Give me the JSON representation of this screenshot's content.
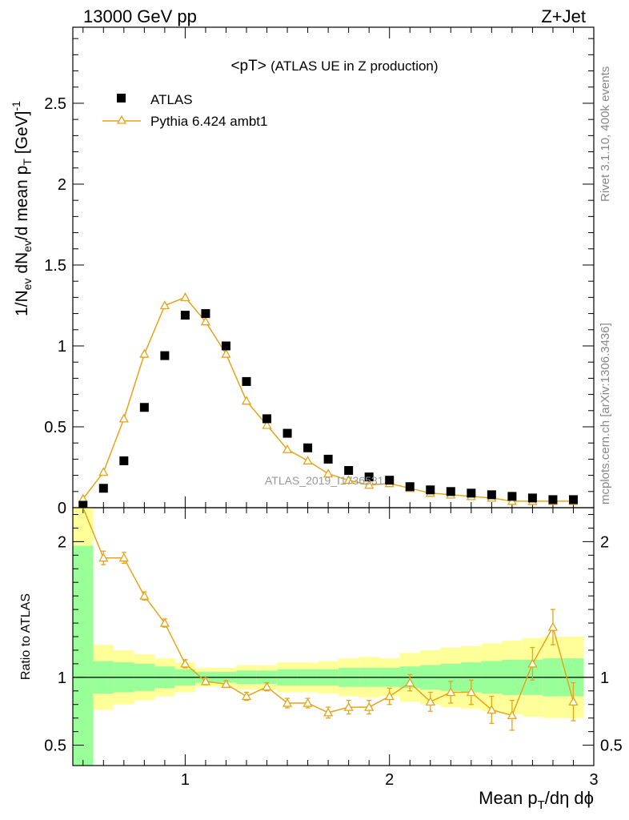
{
  "header": {
    "left": "13000 GeV pp",
    "right": "Z+Jet"
  },
  "side_text": {
    "rivet": "Rivet 3.1.10,  400k events",
    "site": "mcplots.cern.ch [arXiv:1306.3436]"
  },
  "watermark": "ATLAS_2019_I1736531",
  "chart_data": [
    {
      "type": "scatter",
      "title": "<pT>",
      "subtitle": "(ATLAS UE in Z production)",
      "ylabel": "1/N_ev dN_ev/d mean p_T [GeV]^-1",
      "xlim": [
        0.45,
        3.0
      ],
      "ylim": [
        0,
        2.97
      ],
      "y_ticks": [
        0,
        0.5,
        1,
        1.5,
        2,
        2.5
      ],
      "y_tick_labels": [
        "0",
        "0.5",
        "1",
        "1.5",
        "2",
        "2.5"
      ],
      "legend_position": "top-left",
      "series": [
        {
          "name": "ATLAS",
          "marker": "filled-square",
          "color": "#000000",
          "x": [
            0.5,
            0.6,
            0.7,
            0.8,
            0.9,
            1.0,
            1.1,
            1.2,
            1.3,
            1.4,
            1.5,
            1.6,
            1.7,
            1.8,
            1.9,
            2.0,
            2.1,
            2.2,
            2.3,
            2.4,
            2.5,
            2.6,
            2.7,
            2.8,
            2.9
          ],
          "y": [
            0.015,
            0.12,
            0.29,
            0.62,
            0.94,
            1.19,
            1.2,
            1.0,
            0.78,
            0.55,
            0.46,
            0.37,
            0.3,
            0.23,
            0.19,
            0.17,
            0.13,
            0.11,
            0.1,
            0.09,
            0.08,
            0.07,
            0.06,
            0.05,
            0.05
          ]
        },
        {
          "name": "Pythia 6.424 ambt1",
          "marker": "open-triangle",
          "color": "#E8A317",
          "x": [
            0.5,
            0.6,
            0.7,
            0.8,
            0.9,
            1.0,
            1.1,
            1.2,
            1.3,
            1.4,
            1.5,
            1.6,
            1.7,
            1.8,
            1.9,
            2.0,
            2.1,
            2.2,
            2.3,
            2.4,
            2.5,
            2.6,
            2.7,
            2.8,
            2.9
          ],
          "y": [
            0.055,
            0.22,
            0.55,
            0.95,
            1.25,
            1.3,
            1.15,
            0.95,
            0.66,
            0.51,
            0.36,
            0.29,
            0.21,
            0.17,
            0.14,
            0.15,
            0.12,
            0.09,
            0.08,
            0.07,
            0.06,
            0.04,
            0.04,
            0.04,
            0.04
          ],
          "yerr": [
            0.005,
            0.01,
            0.015,
            0.02,
            0.025,
            0.025,
            0.02,
            0.02,
            0.015,
            0.015,
            0.012,
            0.01,
            0.01,
            0.008,
            0.008,
            0.008,
            0.006,
            0.006,
            0.005,
            0.005,
            0.005,
            0.004,
            0.004,
            0.004,
            0.004
          ]
        }
      ]
    },
    {
      "type": "line",
      "ylabel": "Ratio to ATLAS",
      "xlabel": "Mean p_T/dη dφ",
      "xlim": [
        0.45,
        3.0
      ],
      "ylim": [
        0.35,
        2.25
      ],
      "x_ticks": [
        1,
        2,
        3
      ],
      "x_tick_labels": [
        "1",
        "2",
        "3"
      ],
      "y_ticks": [
        0.5,
        1,
        2
      ],
      "y_tick_labels": [
        "0.5",
        "1",
        "2"
      ],
      "bin_edges": [
        0.45,
        0.55,
        0.65,
        0.75,
        0.85,
        0.95,
        1.05,
        1.15,
        1.25,
        1.35,
        1.45,
        1.55,
        1.65,
        1.75,
        1.85,
        1.95,
        2.05,
        2.15,
        2.25,
        2.35,
        2.45,
        2.55,
        2.65,
        2.75,
        2.85,
        2.95
      ],
      "band_green": {
        "lo": [
          0.35,
          0.88,
          0.89,
          0.9,
          0.92,
          0.94,
          0.96,
          0.96,
          0.95,
          0.95,
          0.94,
          0.94,
          0.94,
          0.93,
          0.93,
          0.93,
          0.92,
          0.91,
          0.9,
          0.89,
          0.88,
          0.87,
          0.87,
          0.86,
          0.86
        ],
        "hi": [
          1.97,
          1.12,
          1.11,
          1.1,
          1.08,
          1.06,
          1.04,
          1.04,
          1.05,
          1.05,
          1.06,
          1.06,
          1.06,
          1.07,
          1.07,
          1.07,
          1.08,
          1.09,
          1.1,
          1.11,
          1.12,
          1.13,
          1.13,
          1.14,
          1.14
        ]
      },
      "band_yellow": {
        "lo": [
          0.35,
          0.76,
          0.8,
          0.83,
          0.86,
          0.89,
          0.93,
          0.93,
          0.91,
          0.91,
          0.89,
          0.89,
          0.88,
          0.86,
          0.85,
          0.86,
          0.82,
          0.8,
          0.78,
          0.77,
          0.75,
          0.73,
          0.71,
          0.7,
          0.7
        ],
        "hi": [
          2.25,
          1.24,
          1.2,
          1.17,
          1.14,
          1.11,
          1.07,
          1.07,
          1.09,
          1.09,
          1.11,
          1.11,
          1.12,
          1.14,
          1.15,
          1.14,
          1.18,
          1.2,
          1.22,
          1.23,
          1.25,
          1.27,
          1.29,
          1.3,
          1.3
        ]
      },
      "series": [
        {
          "name": "Pythia 6.424 ambt1",
          "color": "#E8A317",
          "x": [
            0.5,
            0.6,
            0.7,
            0.8,
            0.9,
            1.0,
            1.1,
            1.2,
            1.3,
            1.4,
            1.5,
            1.6,
            1.7,
            1.8,
            1.9,
            2.0,
            2.1,
            2.2,
            2.3,
            2.4,
            2.5,
            2.6,
            2.7,
            2.8,
            2.9
          ],
          "y": [
            3.5,
            1.88,
            1.88,
            1.6,
            1.4,
            1.1,
            0.97,
            0.95,
            0.86,
            0.93,
            0.81,
            0.81,
            0.74,
            0.78,
            0.78,
            0.86,
            0.96,
            0.82,
            0.89,
            0.89,
            0.76,
            0.72,
            1.1,
            1.37,
            0.82
          ],
          "yerr": [
            0.1,
            0.05,
            0.04,
            0.03,
            0.03,
            0.03,
            0.025,
            0.025,
            0.03,
            0.03,
            0.035,
            0.035,
            0.04,
            0.05,
            0.05,
            0.06,
            0.06,
            0.07,
            0.08,
            0.09,
            0.1,
            0.11,
            0.12,
            0.13,
            0.14
          ]
        }
      ]
    }
  ]
}
